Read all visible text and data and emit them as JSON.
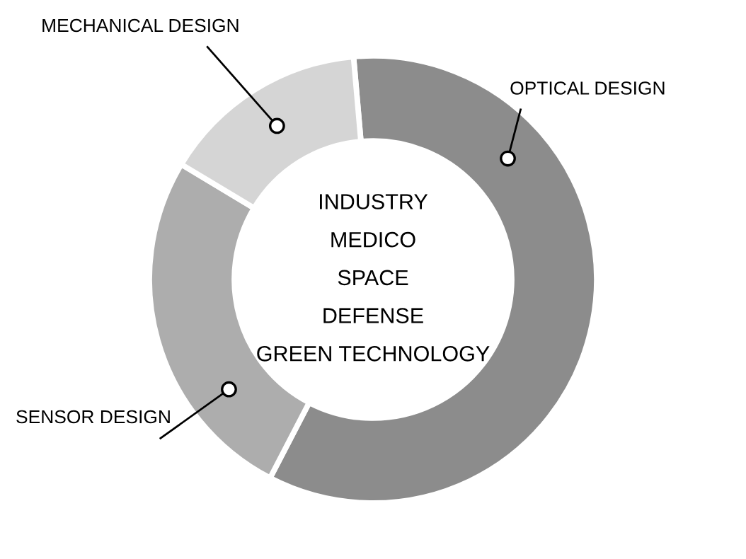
{
  "chart_data": {
    "type": "donut",
    "categories": [
      "OPTICAL DESIGN",
      "SENSOR DESIGN",
      "MECHANICAL DESIGN"
    ],
    "values": [
      59,
      26,
      15
    ],
    "colors": [
      "#8c8c8c",
      "#adadad",
      "#d5d5d5"
    ],
    "annotations": [
      "INDUSTRY",
      "MEDICO",
      "SPACE",
      "DEFENSE",
      "GREEN TECHNOLOGY"
    ],
    "legend": false
  }
}
